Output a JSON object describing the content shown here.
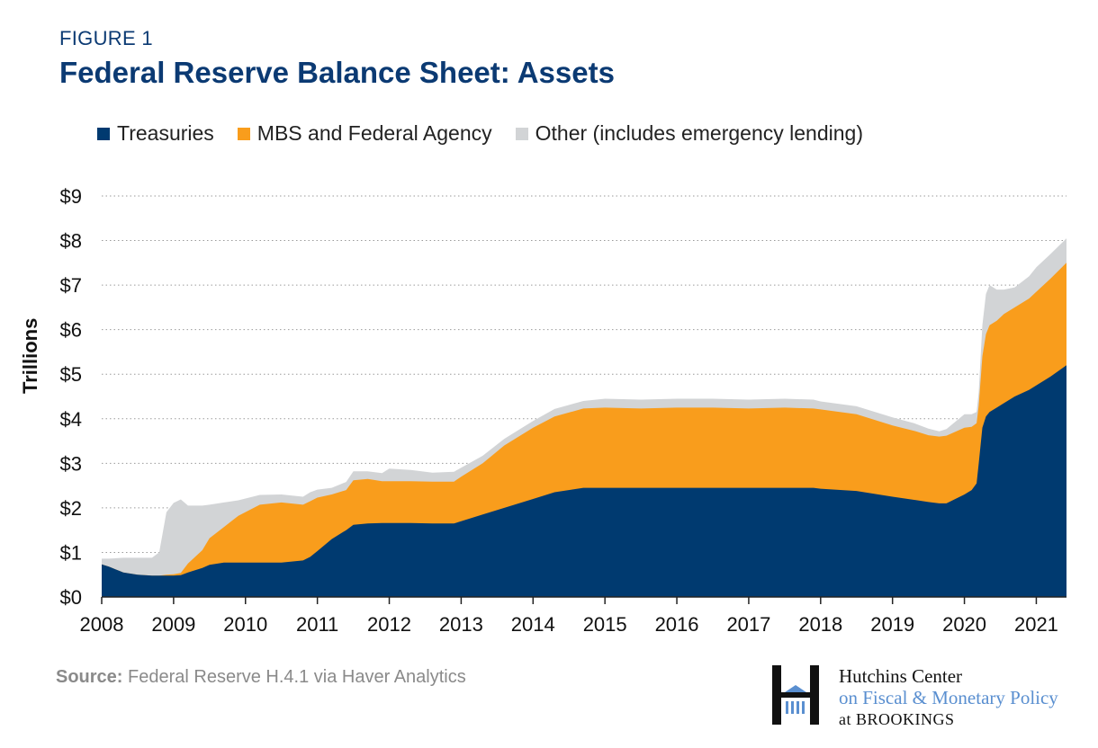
{
  "header": {
    "figure_label": "FIGURE 1",
    "title": "Federal Reserve Balance Sheet: Assets"
  },
  "footer": {
    "source_label": "Source:",
    "source_text": "Federal Reserve H.4.1 via Haver Analytics"
  },
  "logo": {
    "line1": "Hutchins Center",
    "line2": "on Fiscal & Monetary Policy",
    "line3": "at BROOKINGS"
  },
  "colors": {
    "treasuries": "#003a70",
    "mbs": "#f99d1c",
    "other": "#d2d4d6",
    "title": "#0b3a73",
    "grid": "#9a9a9a"
  },
  "chart_data": {
    "type": "area",
    "stacked": true,
    "title": "Federal Reserve Balance Sheet: Assets",
    "ylabel": "Trillions",
    "xlabel": "",
    "ylim": [
      0,
      9
    ],
    "xlim": [
      2008.0,
      2021.42
    ],
    "grid": "horizontal dotted",
    "legend_position": "top",
    "ytick_labels": [
      "$0",
      "$1",
      "$2",
      "$3",
      "$4",
      "$5",
      "$6",
      "$7",
      "$8",
      "$9"
    ],
    "xtick_labels": [
      "2008",
      "2009",
      "2010",
      "2011",
      "2012",
      "2013",
      "2014",
      "2015",
      "2016",
      "2017",
      "2018",
      "2019",
      "2020",
      "2021"
    ],
    "x": [
      2008.0,
      2008.1,
      2008.3,
      2008.5,
      2008.7,
      2008.8,
      2008.9,
      2009.0,
      2009.1,
      2009.2,
      2009.4,
      2009.5,
      2009.7,
      2009.9,
      2010.2,
      2010.5,
      2010.8,
      2010.9,
      2011.0,
      2011.2,
      2011.4,
      2011.5,
      2011.7,
      2011.9,
      2012.0,
      2012.3,
      2012.6,
      2012.9,
      2013.0,
      2013.3,
      2013.6,
      2014.0,
      2014.3,
      2014.7,
      2015.0,
      2015.5,
      2016.0,
      2016.5,
      2017.0,
      2017.5,
      2017.9,
      2018.0,
      2018.5,
      2019.0,
      2019.3,
      2019.5,
      2019.65,
      2019.75,
      2020.0,
      2020.1,
      2020.17,
      2020.2,
      2020.25,
      2020.3,
      2020.35,
      2020.45,
      2020.55,
      2020.7,
      2020.9,
      2021.0,
      2021.2,
      2021.42
    ],
    "series": [
      {
        "name": "Treasuries",
        "values": [
          0.73,
          0.68,
          0.55,
          0.5,
          0.48,
          0.48,
          0.48,
          0.48,
          0.49,
          0.55,
          0.65,
          0.72,
          0.77,
          0.77,
          0.77,
          0.77,
          0.82,
          0.9,
          1.03,
          1.3,
          1.5,
          1.62,
          1.65,
          1.66,
          1.66,
          1.66,
          1.65,
          1.65,
          1.7,
          1.85,
          2.0,
          2.2,
          2.35,
          2.45,
          2.45,
          2.45,
          2.45,
          2.45,
          2.45,
          2.45,
          2.45,
          2.43,
          2.38,
          2.25,
          2.18,
          2.13,
          2.1,
          2.1,
          2.3,
          2.4,
          2.55,
          3.0,
          3.8,
          4.05,
          4.15,
          4.25,
          4.35,
          4.5,
          4.65,
          4.75,
          4.95,
          5.2
        ]
      },
      {
        "name": "MBS and Federal Agency",
        "values": [
          0.0,
          0.0,
          0.0,
          0.0,
          0.0,
          0.0,
          0.02,
          0.03,
          0.05,
          0.2,
          0.4,
          0.6,
          0.8,
          1.05,
          1.3,
          1.35,
          1.25,
          1.25,
          1.2,
          1.0,
          0.9,
          1.0,
          1.0,
          0.94,
          0.94,
          0.94,
          0.94,
          0.94,
          1.0,
          1.15,
          1.4,
          1.6,
          1.7,
          1.78,
          1.8,
          1.78,
          1.8,
          1.8,
          1.78,
          1.8,
          1.78,
          1.78,
          1.72,
          1.6,
          1.55,
          1.5,
          1.5,
          1.52,
          1.5,
          1.42,
          1.35,
          1.3,
          1.6,
          1.85,
          1.95,
          1.95,
          2.0,
          2.0,
          2.05,
          2.1,
          2.2,
          2.3
        ]
      },
      {
        "name": "Other (includes emergency lending)",
        "values": [
          0.13,
          0.18,
          0.33,
          0.38,
          0.4,
          0.52,
          1.4,
          1.6,
          1.65,
          1.3,
          1.0,
          0.75,
          0.55,
          0.35,
          0.22,
          0.18,
          0.18,
          0.2,
          0.18,
          0.15,
          0.18,
          0.2,
          0.17,
          0.18,
          0.28,
          0.25,
          0.2,
          0.22,
          0.2,
          0.17,
          0.15,
          0.15,
          0.17,
          0.17,
          0.2,
          0.2,
          0.2,
          0.2,
          0.2,
          0.2,
          0.2,
          0.18,
          0.18,
          0.18,
          0.17,
          0.15,
          0.12,
          0.15,
          0.3,
          0.28,
          0.25,
          0.3,
          0.7,
          0.9,
          0.9,
          0.7,
          0.55,
          0.45,
          0.5,
          0.55,
          0.55,
          0.55
        ]
      }
    ]
  }
}
